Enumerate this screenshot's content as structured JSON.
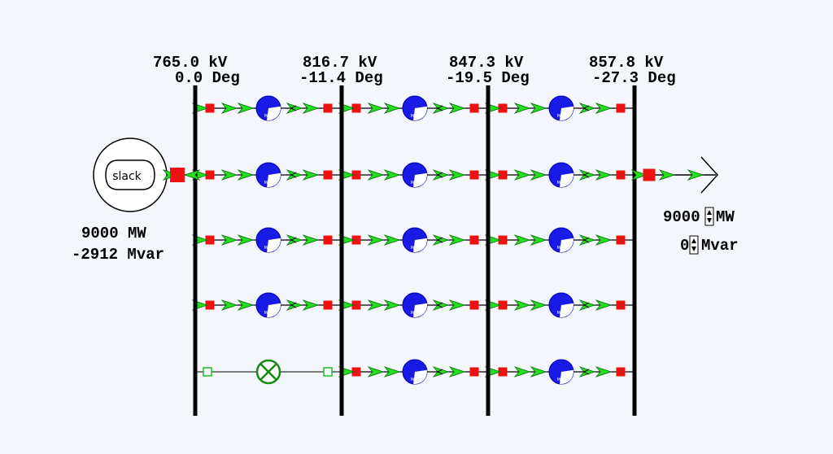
{
  "buses": [
    {
      "voltage": "765.0 kV",
      "angle": "0.0 Deg"
    },
    {
      "voltage": "816.7 kV",
      "angle": "-11.4 Deg"
    },
    {
      "voltage": "847.3 kV",
      "angle": "-19.5 Deg"
    },
    {
      "voltage": "857.8 kV",
      "angle": "-27.3 Deg"
    }
  ],
  "generator": {
    "label": "slack",
    "mw": "9000 MW",
    "mvar": "-2912 Mvar"
  },
  "load": {
    "mw_value": "9000",
    "mw_unit": "MW",
    "mvar_value": "0",
    "mvar_unit": "Mvar"
  },
  "flow_gauge_label": "MVA"
}
